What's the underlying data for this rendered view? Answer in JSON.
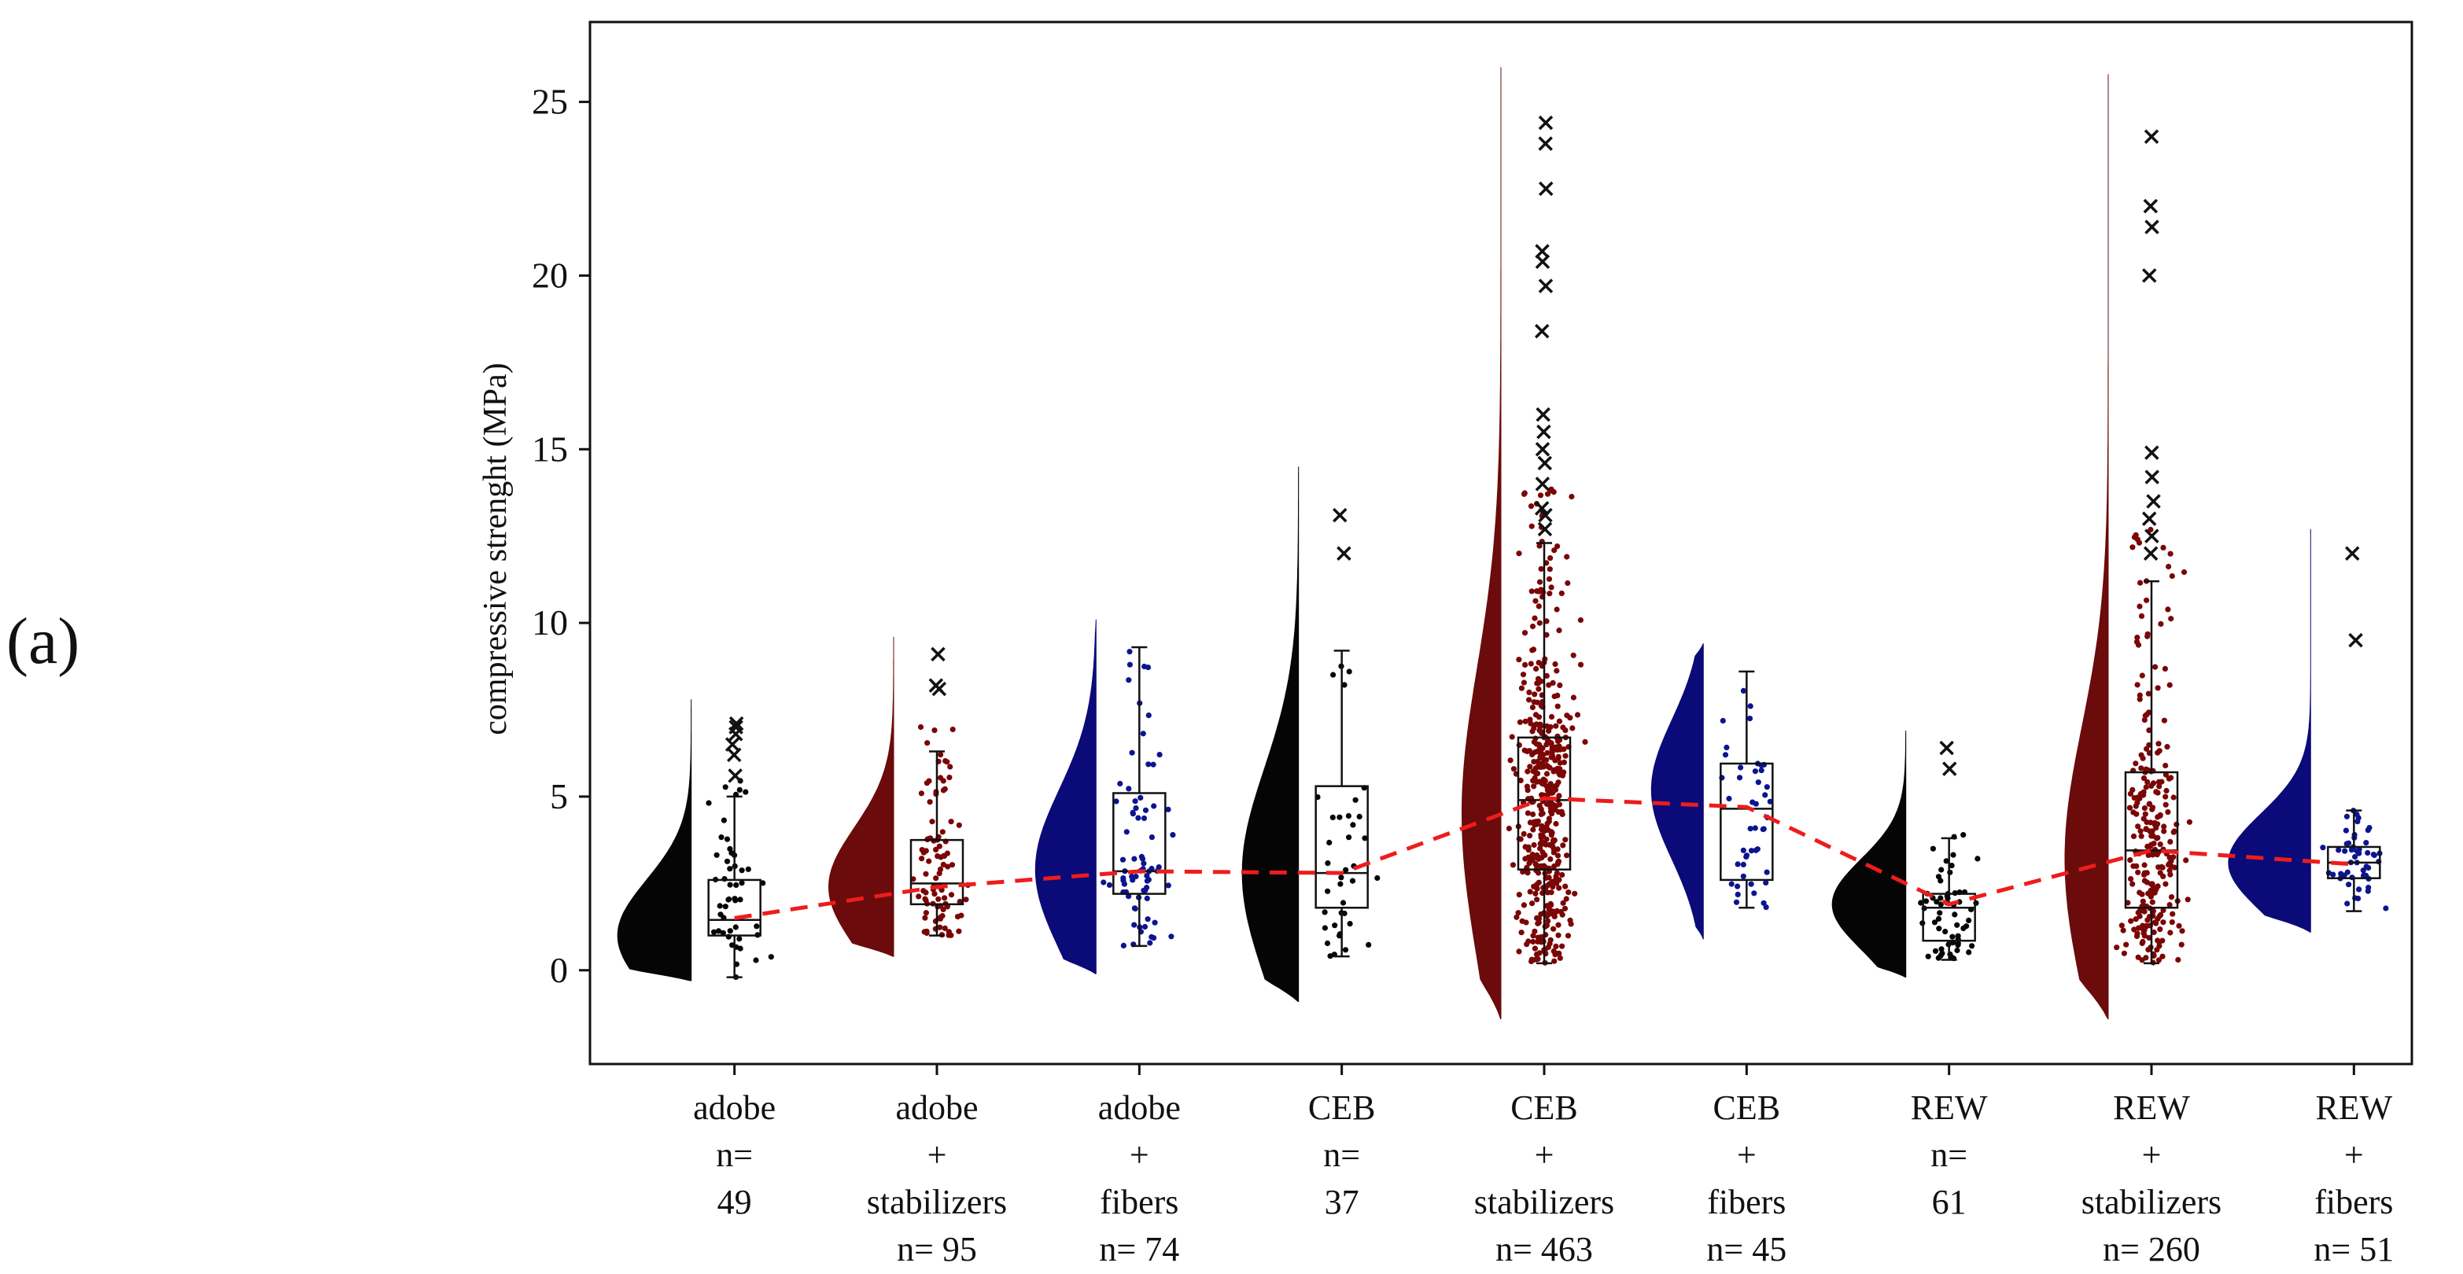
{
  "panel_label": "(a)",
  "chart_data": {
    "type": "raincloud",
    "title": "",
    "xlabel": "",
    "ylabel": "compressive strenght (MPa)",
    "ylim": [
      -2.7,
      27.3
    ],
    "yticks": [
      0,
      5,
      10,
      15,
      20,
      25
    ],
    "grid": false,
    "legend": "none",
    "colors": {
      "black": "#050505",
      "maroon": "#6b0b0b",
      "navy": "#0a0a78",
      "dots_maroon": "#7a0606",
      "dots_navy": "#0c1490",
      "trend": "#ee1c1c"
    },
    "categories": [
      {
        "label_lines": [
          "adobe",
          "n=",
          "49"
        ],
        "n": 49,
        "color": "black",
        "density": {
          "min": -0.3,
          "max": 7.8,
          "peak": 1.0,
          "spread": 1.6,
          "width": 0.85
        },
        "box": {
          "q1": 1.0,
          "median": 1.45,
          "q3": 2.6,
          "whisker_low": -0.2,
          "whisker_high": 5.0
        },
        "outliers": [
          5.6,
          6.2,
          6.5,
          6.8,
          7.0,
          7.1
        ],
        "mean": 1.5,
        "jitter_max": 7.2
      },
      {
        "label_lines": [
          "adobe",
          "+",
          "stabilizers",
          "n= 95"
        ],
        "n": 95,
        "color": "maroon",
        "density": {
          "min": 0.4,
          "max": 9.6,
          "peak": 2.4,
          "spread": 1.7,
          "width": 0.75
        },
        "box": {
          "q1": 1.9,
          "median": 2.5,
          "q3": 3.75,
          "whisker_low": 1.0,
          "whisker_high": 6.3
        },
        "outliers": [
          8.1,
          8.2,
          9.1
        ],
        "mean": 2.4,
        "jitter_max": 9.1
      },
      {
        "label_lines": [
          "adobe",
          "+",
          "fibers",
          "n= 74"
        ],
        "n": 74,
        "color": "navy",
        "density": {
          "min": -0.1,
          "max": 10.1,
          "peak": 2.9,
          "spread": 2.3,
          "width": 0.7
        },
        "box": {
          "q1": 2.2,
          "median": 2.85,
          "q3": 5.1,
          "whisker_low": 0.7,
          "whisker_high": 9.3
        },
        "outliers": [],
        "mean": 2.85,
        "jitter_max": 9.3
      },
      {
        "label_lines": [
          "CEB",
          "n=",
          "37"
        ],
        "n": 37,
        "color": "black",
        "density": {
          "min": -0.9,
          "max": 14.5,
          "peak": 2.8,
          "spread": 3.0,
          "width": 0.65
        },
        "box": {
          "q1": 1.8,
          "median": 2.8,
          "q3": 5.3,
          "whisker_low": 0.4,
          "whisker_high": 9.2
        },
        "outliers": [
          12.0,
          13.1
        ],
        "mean": 2.8,
        "jitter_max": 9.3
      },
      {
        "label_lines": [
          "CEB",
          "+",
          "stabilizers",
          "n= 463"
        ],
        "n": 463,
        "color": "maroon",
        "density": {
          "min": -1.4,
          "max": 26.0,
          "peak": 4.5,
          "spread": 4.2,
          "width": 0.45
        },
        "box": {
          "q1": 2.9,
          "median": 4.9,
          "q3": 6.7,
          "whisker_low": 0.2,
          "whisker_high": 12.3
        },
        "outliers": [
          12.7,
          13.1,
          13.3,
          14.0,
          14.6,
          15.0,
          15.5,
          16.0,
          18.4,
          19.7,
          20.4,
          20.7,
          22.5,
          23.8,
          24.4
        ],
        "mean": 4.95,
        "jitter_max": 24.0
      },
      {
        "label_lines": [
          "CEB",
          "+",
          "fibers",
          "n= 45"
        ],
        "n": 45,
        "color": "navy",
        "density": {
          "min": 0.9,
          "max": 9.4,
          "peak": 5.2,
          "spread": 2.0,
          "width": 0.6
        },
        "box": {
          "q1": 2.6,
          "median": 4.65,
          "q3": 5.95,
          "whisker_low": 1.8,
          "whisker_high": 8.6
        },
        "outliers": [],
        "mean": 4.7,
        "jitter_max": 8.6
      },
      {
        "label_lines": [
          "REW",
          "n=",
          "61"
        ],
        "n": 61,
        "color": "black",
        "density": {
          "min": -0.2,
          "max": 6.9,
          "peak": 1.9,
          "spread": 1.3,
          "width": 0.85
        },
        "box": {
          "q1": 0.85,
          "median": 1.8,
          "q3": 2.2,
          "whisker_low": 0.3,
          "whisker_high": 3.8
        },
        "outliers": [
          5.8,
          6.4
        ],
        "mean": 1.9,
        "jitter_max": 3.9
      },
      {
        "label_lines": [
          "REW",
          "+",
          "stabilizers",
          "n= 260"
        ],
        "n": 260,
        "color": "maroon",
        "density": {
          "min": -1.4,
          "max": 25.8,
          "peak": 3.2,
          "spread": 3.8,
          "width": 0.5
        },
        "box": {
          "q1": 1.8,
          "median": 3.45,
          "q3": 5.7,
          "whisker_low": 0.2,
          "whisker_high": 11.2
        },
        "outliers": [
          12.0,
          12.5,
          13.0,
          13.5,
          14.2,
          14.9,
          20.0,
          21.4,
          22.0,
          24.0
        ],
        "mean": 3.45,
        "jitter_max": 24.1
      },
      {
        "label_lines": [
          "REW",
          "+",
          "fibers",
          "n= 51"
        ],
        "n": 51,
        "color": "navy",
        "density": {
          "min": 1.1,
          "max": 12.7,
          "peak": 3.1,
          "spread": 1.4,
          "width": 0.95
        },
        "box": {
          "q1": 2.65,
          "median": 3.1,
          "q3": 3.55,
          "whisker_low": 1.7,
          "whisker_high": 4.6
        },
        "outliers": [
          9.5,
          12.0
        ],
        "mean": 3.05,
        "jitter_max": 4.6
      }
    ]
  }
}
